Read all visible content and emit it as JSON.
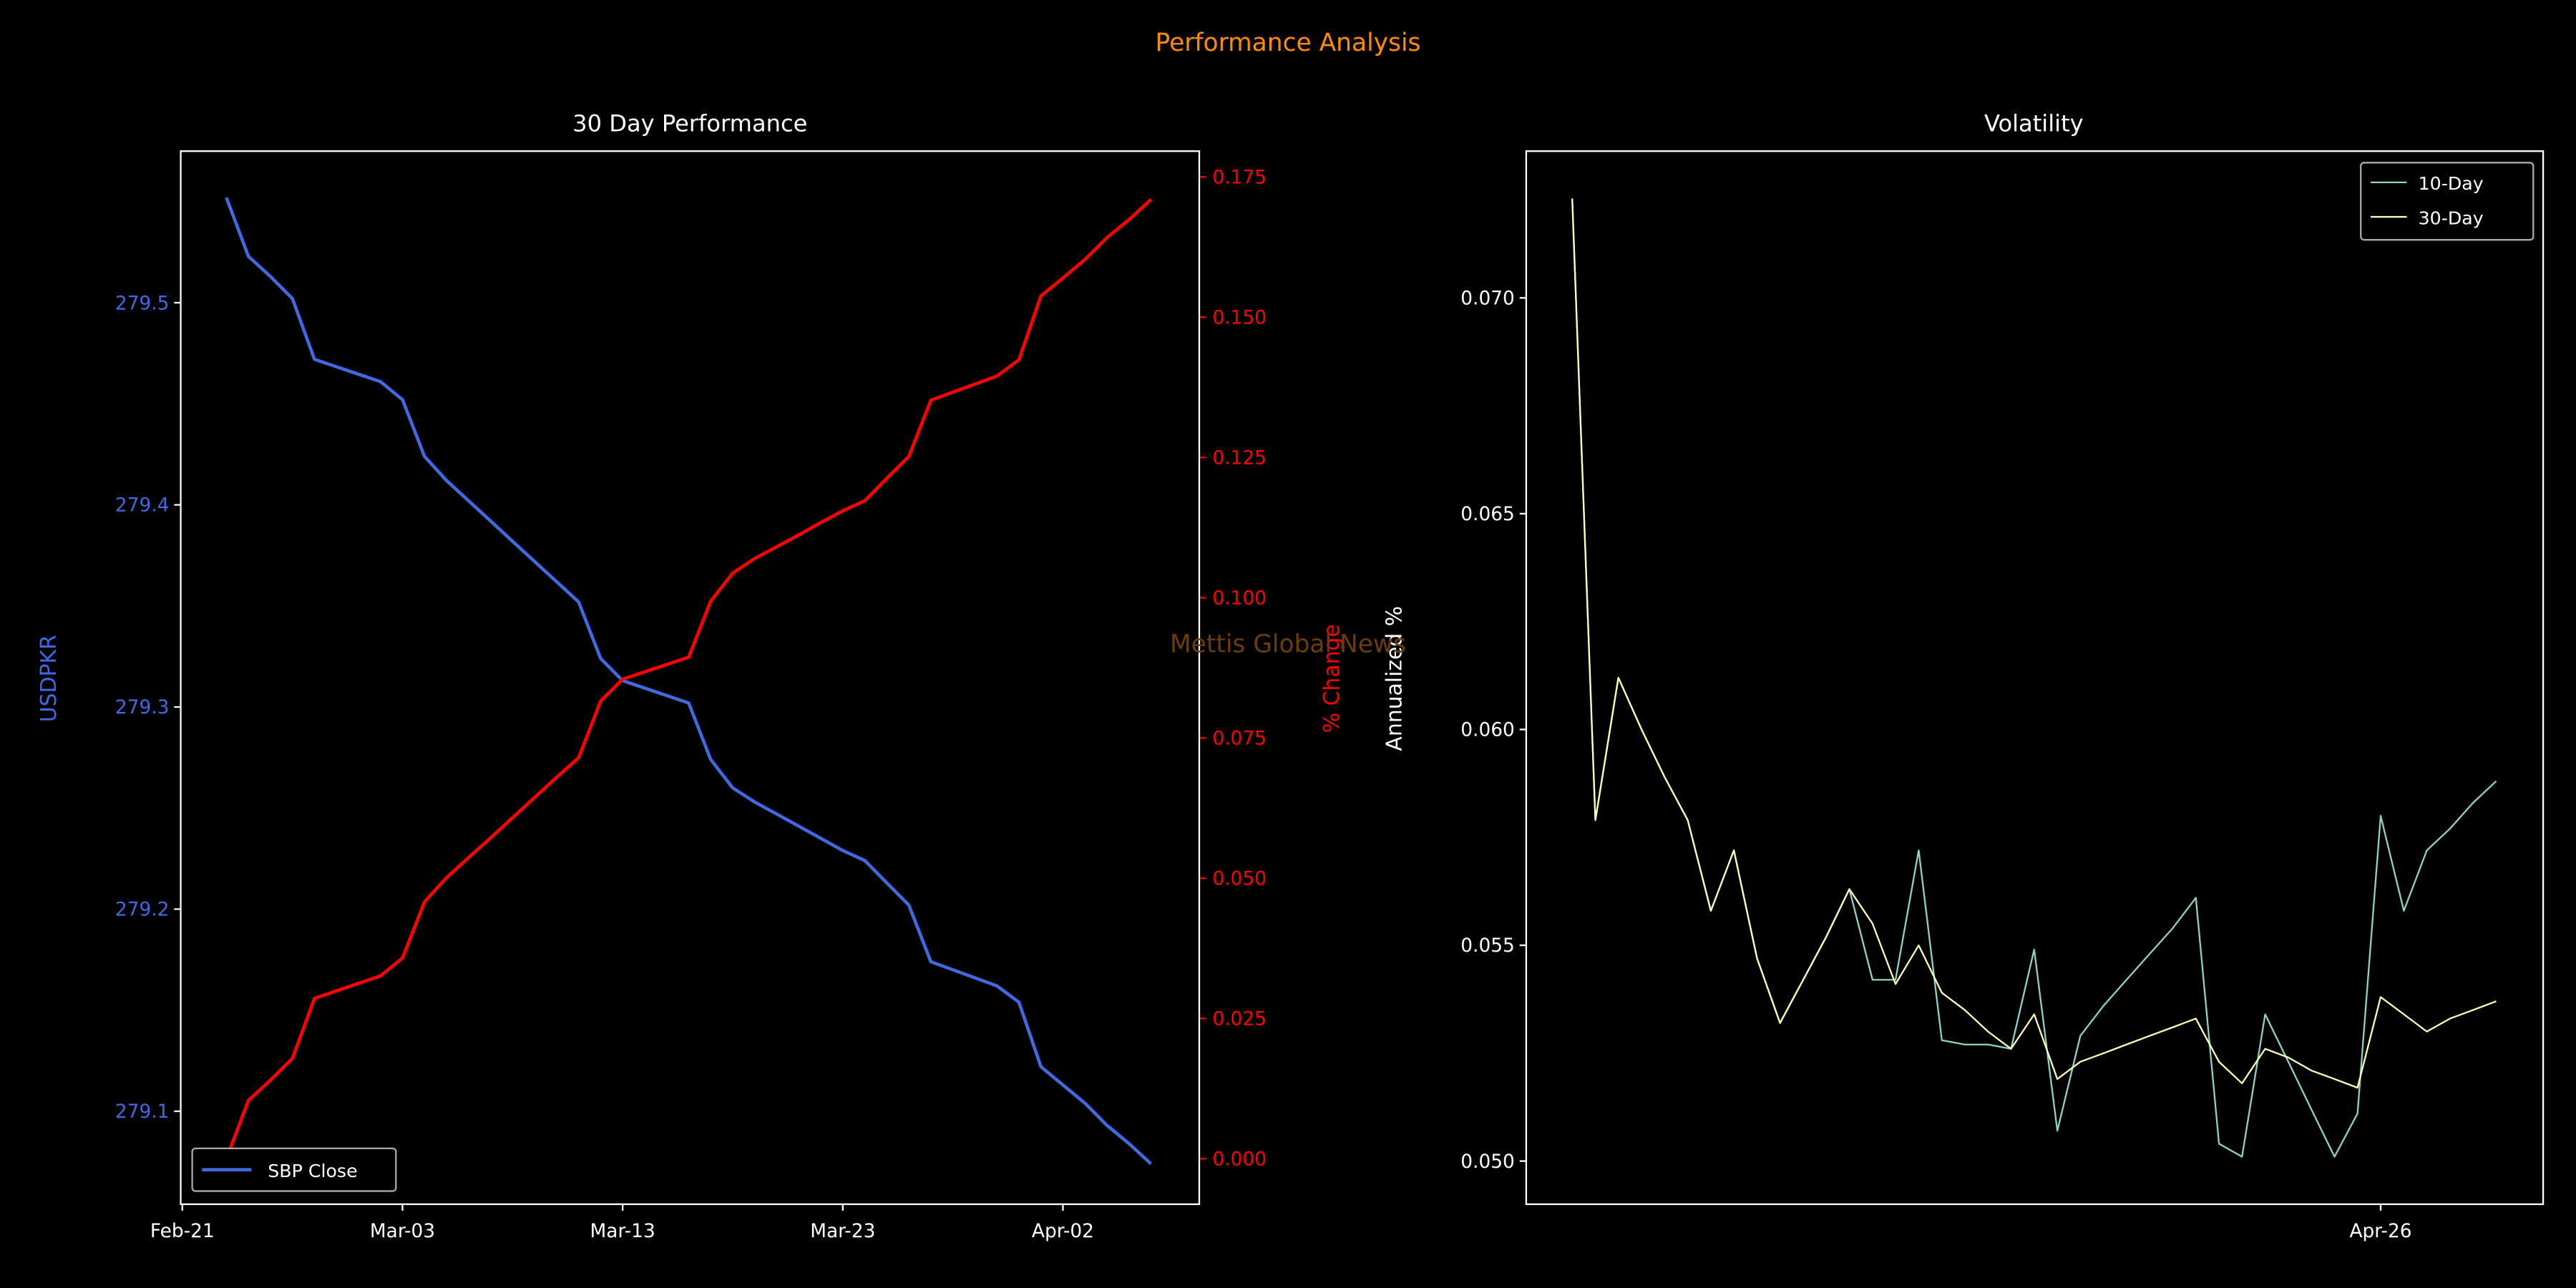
{
  "suptitle": "Performance Analysis",
  "watermark": "Mettis Global News",
  "colors": {
    "suptitle": "#ff8c00",
    "price": "#4169e1",
    "pct": "#ff0000",
    "vol10": "#8dd3c7",
    "vol30": "#ffffb3",
    "watermark": "#6b3d0a"
  },
  "chart_data": [
    {
      "type": "line",
      "title": "30 Day Performance",
      "xlabel": "",
      "ylabel": "USDPKR",
      "ylabel_right": "% Change",
      "x": [
        "Feb-23",
        "Feb-24",
        "Feb-25",
        "Feb-26",
        "Feb-27",
        "Mar-02",
        "Mar-03",
        "Mar-04",
        "Mar-05",
        "Mar-06",
        "Mar-07",
        "Mar-08",
        "Mar-09",
        "Mar-10",
        "Mar-11",
        "Mar-12",
        "Mar-13",
        "Mar-16",
        "Mar-17",
        "Mar-18",
        "Mar-19",
        "Mar-20",
        "Mar-21",
        "Mar-22",
        "Mar-23",
        "Mar-24",
        "Mar-25",
        "Mar-26",
        "Mar-27",
        "Mar-30",
        "Mar-31",
        "Apr-01",
        "Apr-02",
        "Apr-03",
        "Apr-04",
        "Apr-05",
        "Apr-06"
      ],
      "series": [
        {
          "name": "SBP Close",
          "axis": "left",
          "values": [
            279.552,
            279.523,
            279.513,
            279.502,
            279.472,
            279.461,
            279.452,
            279.424,
            279.412,
            279.402,
            279.392,
            279.382,
            279.372,
            279.362,
            279.352,
            279.324,
            279.313,
            279.302,
            279.274,
            279.26,
            279.253,
            279.247,
            279.241,
            279.235,
            279.229,
            279.224,
            279.213,
            279.202,
            279.174,
            279.162,
            279.154,
            279.122,
            279.113,
            279.104,
            279.093,
            279.084,
            279.074
          ]
        },
        {
          "name": "% Change",
          "axis": "right",
          "values": [
            0,
            0.0104,
            0.014,
            0.0179,
            0.0286,
            0.0326,
            0.0358,
            0.0458,
            0.0501,
            0.0537,
            0.0572,
            0.0608,
            0.0644,
            0.068,
            0.0715,
            0.0816,
            0.0855,
            0.0894,
            0.0994,
            0.1044,
            0.107,
            0.1091,
            0.1112,
            0.1134,
            0.1155,
            0.1173,
            0.1213,
            0.1252,
            0.1352,
            0.1395,
            0.1424,
            0.1538,
            0.157,
            0.1603,
            0.1642,
            0.1674,
            0.171
          ]
        }
      ],
      "xticks": [
        "Feb-21",
        "Mar-03",
        "Mar-13",
        "Mar-23",
        "Apr-02"
      ],
      "yticks_left": [
        "279.1",
        "279.2",
        "279.3",
        "279.4",
        "279.5"
      ],
      "yticks_right": [
        "0.000",
        "0.025",
        "0.050",
        "0.075",
        "0.100",
        "0.125",
        "0.150",
        "0.175"
      ],
      "ylim_left": [
        279.054,
        279.575
      ],
      "ylim_right": [
        -0.0081,
        0.1796
      ],
      "legend": {
        "entries": [
          "SBP Close"
        ],
        "placement": "lower-left"
      }
    },
    {
      "type": "line",
      "title": "Volatility",
      "xlabel": "",
      "ylabel": "Annualized %",
      "x": [
        0,
        1,
        2,
        3,
        4,
        5,
        6,
        7,
        8,
        9,
        10,
        11,
        12,
        13,
        14,
        15,
        16,
        17,
        18,
        19,
        20,
        21,
        22,
        23,
        24,
        25,
        26,
        27,
        28,
        29,
        30,
        31,
        32,
        33,
        34,
        35,
        36,
        37,
        38,
        39,
        40
      ],
      "xticks": [
        {
          "index": 35,
          "label": "Apr-26"
        }
      ],
      "series": [
        {
          "name": "10-Day",
          "values": [
            0.0723,
            0.0579,
            0.0612,
            0.06,
            0.0589,
            0.0579,
            0.0558,
            0.0572,
            0.0547,
            0.0532,
            0.0542,
            0.0552,
            0.0563,
            0.0542,
            0.0542,
            0.0572,
            0.0528,
            0.0527,
            0.0527,
            0.0526,
            0.0549,
            0.0507,
            0.0529,
            0.0536,
            0.0542,
            0.0548,
            0.0554,
            0.0561,
            0.0504,
            0.0501,
            0.0534,
            0.0523,
            0.0512,
            0.0501,
            0.0511,
            0.058,
            0.0558,
            0.0572,
            0.0577,
            0.0583,
            0.0588
          ]
        },
        {
          "name": "30-Day",
          "values": [
            0.0723,
            0.0579,
            0.0612,
            0.06,
            0.0589,
            0.0579,
            0.0558,
            0.0572,
            0.0547,
            0.0532,
            0.0542,
            0.0552,
            0.0563,
            0.0555,
            0.0541,
            0.055,
            0.0539,
            0.0535,
            0.053,
            0.0526,
            0.0534,
            0.0519,
            0.0523,
            0.0525,
            0.0527,
            0.0529,
            0.0531,
            0.0533,
            0.0523,
            0.0518,
            0.0526,
            0.0524,
            0.0521,
            0.0519,
            0.0517,
            0.0538,
            0.0534,
            0.053,
            0.0533,
            0.0535,
            0.0537
          ]
        }
      ],
      "yticks": [
        "0.050",
        "0.055",
        "0.060",
        "0.065",
        "0.070"
      ],
      "ylim": [
        0.049,
        0.0734
      ],
      "legend": {
        "entries": [
          "10-Day",
          "30-Day"
        ],
        "placement": "upper-right"
      }
    }
  ]
}
